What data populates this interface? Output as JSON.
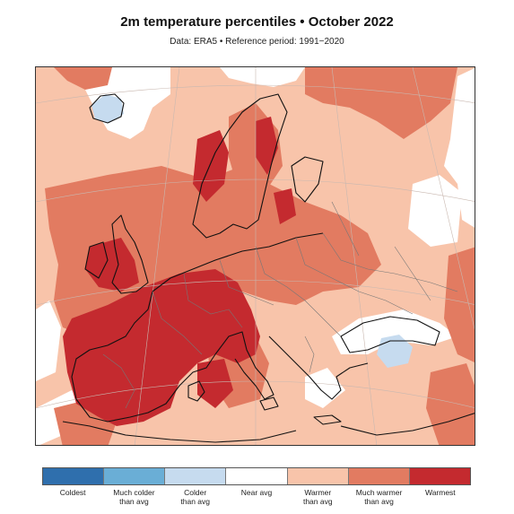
{
  "header": {
    "title": "2m temperature percentiles • October 2022",
    "subtitle": "Data: ERA5 • Reference period: 1991−2020"
  },
  "map": {
    "region": "Europe",
    "background_category": "Warmer than avg"
  },
  "legend": {
    "items": [
      {
        "label_line1": "Coldest",
        "label_line2": "",
        "color": "#2f6fad"
      },
      {
        "label_line1": "Much colder",
        "label_line2": "than avg",
        "color": "#6aaed6"
      },
      {
        "label_line1": "Colder",
        "label_line2": "than avg",
        "color": "#c6dbef"
      },
      {
        "label_line1": "Near avg",
        "label_line2": "",
        "color": "#ffffff"
      },
      {
        "label_line1": "Warmer",
        "label_line2": "than avg",
        "color": "#f8c4aa"
      },
      {
        "label_line1": "Much warmer",
        "label_line2": "than avg",
        "color": "#e27b61"
      },
      {
        "label_line1": "Warmest",
        "label_line2": "",
        "color": "#c42a2f"
      }
    ]
  }
}
